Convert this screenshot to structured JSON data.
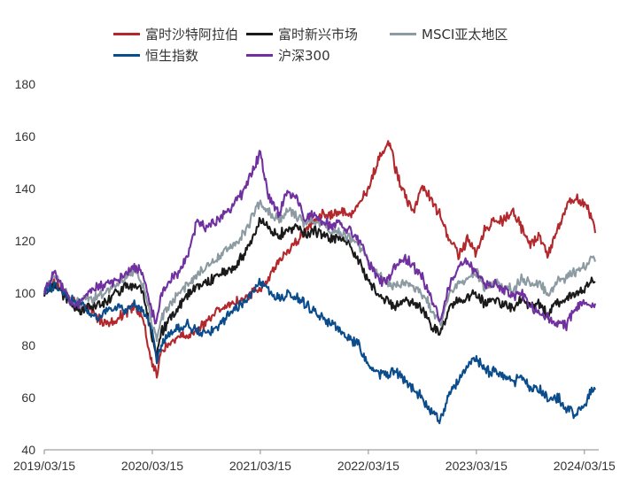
{
  "chart_data": {
    "type": "line",
    "title": "",
    "xlabel": "",
    "ylabel": "",
    "ylim": [
      40,
      180
    ],
    "yticks": [
      40,
      60,
      80,
      100,
      120,
      140,
      160,
      180
    ],
    "xlim": [
      0,
      61.2
    ],
    "xticks": [
      {
        "month": 0,
        "label": "2019/03/15"
      },
      {
        "month": 12,
        "label": "2020/03/15"
      },
      {
        "month": 24,
        "label": "2021/03/15"
      },
      {
        "month": 36,
        "label": "2022/03/15"
      },
      {
        "month": 48,
        "label": "2023/03/15"
      },
      {
        "month": 60,
        "label": "2024/03/15"
      }
    ],
    "grid": false,
    "legend_position": "top",
    "series": [
      {
        "name": "富时沙特阿拉伯",
        "color": "#b3282d",
        "points": [
          [
            0,
            100
          ],
          [
            1,
            105
          ],
          [
            2,
            101
          ],
          [
            3,
            97
          ],
          [
            4,
            94
          ],
          [
            5,
            95
          ],
          [
            6,
            90
          ],
          [
            7,
            88
          ],
          [
            8,
            90
          ],
          [
            9,
            92
          ],
          [
            10,
            95
          ],
          [
            11,
            90
          ],
          [
            12,
            73
          ],
          [
            12.5,
            68
          ],
          [
            13,
            78
          ],
          [
            14,
            80
          ],
          [
            15,
            84
          ],
          [
            16,
            83
          ],
          [
            17,
            86
          ],
          [
            18,
            88
          ],
          [
            19,
            93
          ],
          [
            20,
            95
          ],
          [
            21,
            96
          ],
          [
            22,
            97
          ],
          [
            23,
            100
          ],
          [
            24,
            102
          ],
          [
            25,
            106
          ],
          [
            26,
            112
          ],
          [
            27,
            116
          ],
          [
            28,
            120
          ],
          [
            29,
            124
          ],
          [
            30,
            128
          ],
          [
            31,
            130
          ],
          [
            32,
            130
          ],
          [
            33,
            132
          ],
          [
            34,
            130
          ],
          [
            35,
            134
          ],
          [
            36,
            140
          ],
          [
            37,
            150
          ],
          [
            38,
            156
          ],
          [
            38.5,
            157
          ],
          [
            39,
            148
          ],
          [
            39.5,
            142
          ],
          [
            40,
            138
          ],
          [
            41,
            130
          ],
          [
            42,
            142
          ],
          [
            43,
            135
          ],
          [
            44,
            130
          ],
          [
            45,
            120
          ],
          [
            46,
            115
          ],
          [
            47,
            120
          ],
          [
            48,
            115
          ],
          [
            49,
            125
          ],
          [
            50,
            128
          ],
          [
            51,
            128
          ],
          [
            52,
            132
          ],
          [
            53,
            125
          ],
          [
            54,
            118
          ],
          [
            55,
            122
          ],
          [
            56,
            115
          ],
          [
            57,
            125
          ],
          [
            58,
            132
          ],
          [
            59,
            137
          ],
          [
            60,
            134
          ],
          [
            61,
            128
          ],
          [
            61.2,
            123
          ]
        ]
      },
      {
        "name": "富时新兴市场",
        "color": "#1a1a1a",
        "points": [
          [
            0,
            100
          ],
          [
            1,
            104
          ],
          [
            2,
            100
          ],
          [
            3,
            96
          ],
          [
            4,
            93
          ],
          [
            5,
            95
          ],
          [
            6,
            95
          ],
          [
            7,
            97
          ],
          [
            8,
            100
          ],
          [
            9,
            102
          ],
          [
            10,
            103
          ],
          [
            11,
            100
          ],
          [
            12,
            83
          ],
          [
            12.5,
            76
          ],
          [
            13,
            85
          ],
          [
            14,
            90
          ],
          [
            15,
            95
          ],
          [
            16,
            100
          ],
          [
            17,
            102
          ],
          [
            18,
            104
          ],
          [
            19,
            106
          ],
          [
            20,
            108
          ],
          [
            21,
            110
          ],
          [
            22,
            114
          ],
          [
            23,
            120
          ],
          [
            24,
            128
          ],
          [
            25,
            125
          ],
          [
            26,
            122
          ],
          [
            27,
            124
          ],
          [
            28,
            126
          ],
          [
            29,
            122
          ],
          [
            30,
            124
          ],
          [
            31,
            122
          ],
          [
            32,
            121
          ],
          [
            33,
            120
          ],
          [
            34,
            118
          ],
          [
            35,
            112
          ],
          [
            36,
            105
          ],
          [
            37,
            100
          ],
          [
            38,
            97
          ],
          [
            39,
            95
          ],
          [
            40,
            98
          ],
          [
            41,
            96
          ],
          [
            42,
            94
          ],
          [
            43,
            88
          ],
          [
            44,
            85
          ],
          [
            45,
            95
          ],
          [
            46,
            97
          ],
          [
            47,
            98
          ],
          [
            48,
            100
          ],
          [
            49,
            96
          ],
          [
            50,
            97
          ],
          [
            51,
            96
          ],
          [
            52,
            94
          ],
          [
            53,
            98
          ],
          [
            54,
            95
          ],
          [
            55,
            96
          ],
          [
            56,
            92
          ],
          [
            57,
            96
          ],
          [
            58,
            98
          ],
          [
            59,
            100
          ],
          [
            60,
            101
          ],
          [
            61,
            106
          ],
          [
            61.2,
            104
          ]
        ]
      },
      {
        "name": "MSCI亚太地区",
        "color": "#8c9aa2",
        "points": [
          [
            0,
            100
          ],
          [
            1,
            106
          ],
          [
            2,
            103
          ],
          [
            3,
            97
          ],
          [
            4,
            96
          ],
          [
            5,
            98
          ],
          [
            6,
            99
          ],
          [
            7,
            101
          ],
          [
            8,
            103
          ],
          [
            9,
            106
          ],
          [
            10,
            108
          ],
          [
            11,
            103
          ],
          [
            12,
            88
          ],
          [
            12.5,
            82
          ],
          [
            13,
            90
          ],
          [
            14,
            96
          ],
          [
            15,
            100
          ],
          [
            16,
            104
          ],
          [
            17,
            107
          ],
          [
            18,
            110
          ],
          [
            19,
            113
          ],
          [
            20,
            116
          ],
          [
            21,
            118
          ],
          [
            22,
            122
          ],
          [
            23,
            128
          ],
          [
            24,
            135
          ],
          [
            25,
            131
          ],
          [
            26,
            128
          ],
          [
            27,
            132
          ],
          [
            28,
            130
          ],
          [
            29,
            126
          ],
          [
            30,
            128
          ],
          [
            31,
            126
          ],
          [
            32,
            124
          ],
          [
            33,
            123
          ],
          [
            34,
            121
          ],
          [
            35,
            118
          ],
          [
            36,
            112
          ],
          [
            37,
            108
          ],
          [
            38,
            105
          ],
          [
            39,
            102
          ],
          [
            40,
            104
          ],
          [
            41,
            102
          ],
          [
            42,
            100
          ],
          [
            43,
            94
          ],
          [
            44,
            88
          ],
          [
            45,
            100
          ],
          [
            46,
            104
          ],
          [
            47,
            106
          ],
          [
            48,
            108
          ],
          [
            49,
            102
          ],
          [
            50,
            104
          ],
          [
            51,
            103
          ],
          [
            52,
            101
          ],
          [
            53,
            106
          ],
          [
            54,
            103
          ],
          [
            55,
            104
          ],
          [
            56,
            100
          ],
          [
            57,
            104
          ],
          [
            58,
            106
          ],
          [
            59,
            108
          ],
          [
            60,
            110
          ],
          [
            61,
            114
          ],
          [
            61.2,
            112
          ]
        ]
      },
      {
        "name": "恒生指数",
        "color": "#0b4d8c",
        "points": [
          [
            0,
            100
          ],
          [
            1,
            103
          ],
          [
            2,
            100
          ],
          [
            3,
            97
          ],
          [
            4,
            96
          ],
          [
            5,
            92
          ],
          [
            6,
            91
          ],
          [
            7,
            93
          ],
          [
            8,
            95
          ],
          [
            9,
            94
          ],
          [
            10,
            96
          ],
          [
            11,
            94
          ],
          [
            12,
            85
          ],
          [
            12.5,
            75
          ],
          [
            13,
            80
          ],
          [
            14,
            85
          ],
          [
            15,
            86
          ],
          [
            16,
            88
          ],
          [
            17,
            85
          ],
          [
            18,
            85
          ],
          [
            19,
            86
          ],
          [
            20,
            90
          ],
          [
            21,
            94
          ],
          [
            22,
            96
          ],
          [
            23,
            100
          ],
          [
            24,
            105
          ],
          [
            25,
            100
          ],
          [
            26,
            98
          ],
          [
            27,
            100
          ],
          [
            28,
            98
          ],
          [
            29,
            96
          ],
          [
            30,
            93
          ],
          [
            31,
            90
          ],
          [
            32,
            88
          ],
          [
            33,
            85
          ],
          [
            34,
            82
          ],
          [
            35,
            80
          ],
          [
            36,
            72
          ],
          [
            37,
            70
          ],
          [
            38,
            68
          ],
          [
            39,
            70
          ],
          [
            40,
            67
          ],
          [
            41,
            63
          ],
          [
            42,
            60
          ],
          [
            43,
            55
          ],
          [
            44,
            52
          ],
          [
            45,
            62
          ],
          [
            46,
            66
          ],
          [
            47,
            72
          ],
          [
            48,
            75
          ],
          [
            49,
            70
          ],
          [
            50,
            70
          ],
          [
            51,
            68
          ],
          [
            52,
            66
          ],
          [
            53,
            68
          ],
          [
            54,
            64
          ],
          [
            55,
            63
          ],
          [
            56,
            60
          ],
          [
            57,
            60
          ],
          [
            58,
            56
          ],
          [
            59,
            54
          ],
          [
            60,
            57
          ],
          [
            61,
            64
          ],
          [
            61.2,
            63
          ]
        ]
      },
      {
        "name": "沪深300",
        "color": "#7030a0",
        "points": [
          [
            0,
            100
          ],
          [
            1,
            108
          ],
          [
            2,
            103
          ],
          [
            3,
            96
          ],
          [
            4,
            96
          ],
          [
            5,
            100
          ],
          [
            6,
            102
          ],
          [
            7,
            103
          ],
          [
            8,
            105
          ],
          [
            9,
            107
          ],
          [
            10,
            110
          ],
          [
            11,
            108
          ],
          [
            12,
            92
          ],
          [
            12.5,
            88
          ],
          [
            13,
            100
          ],
          [
            14,
            105
          ],
          [
            15,
            108
          ],
          [
            16,
            115
          ],
          [
            17,
            128
          ],
          [
            18,
            125
          ],
          [
            19,
            127
          ],
          [
            20,
            130
          ],
          [
            21,
            134
          ],
          [
            22,
            138
          ],
          [
            23,
            145
          ],
          [
            24,
            154
          ],
          [
            25,
            136
          ],
          [
            26,
            130
          ],
          [
            27,
            138
          ],
          [
            28,
            137
          ],
          [
            29,
            128
          ],
          [
            30,
            130
          ],
          [
            31,
            127
          ],
          [
            32,
            126
          ],
          [
            33,
            127
          ],
          [
            34,
            124
          ],
          [
            35,
            120
          ],
          [
            36,
            112
          ],
          [
            37,
            106
          ],
          [
            38,
            104
          ],
          [
            39,
            110
          ],
          [
            40,
            114
          ],
          [
            41,
            110
          ],
          [
            42,
            106
          ],
          [
            43,
            98
          ],
          [
            44,
            90
          ],
          [
            45,
            103
          ],
          [
            46,
            110
          ],
          [
            47,
            112
          ],
          [
            48,
            108
          ],
          [
            49,
            103
          ],
          [
            50,
            104
          ],
          [
            51,
            101
          ],
          [
            52,
            99
          ],
          [
            53,
            100
          ],
          [
            54,
            95
          ],
          [
            55,
            92
          ],
          [
            56,
            90
          ],
          [
            57,
            88
          ],
          [
            58,
            88
          ],
          [
            59,
            94
          ],
          [
            60,
            97
          ],
          [
            61,
            96
          ],
          [
            61.2,
            96
          ]
        ]
      }
    ]
  }
}
